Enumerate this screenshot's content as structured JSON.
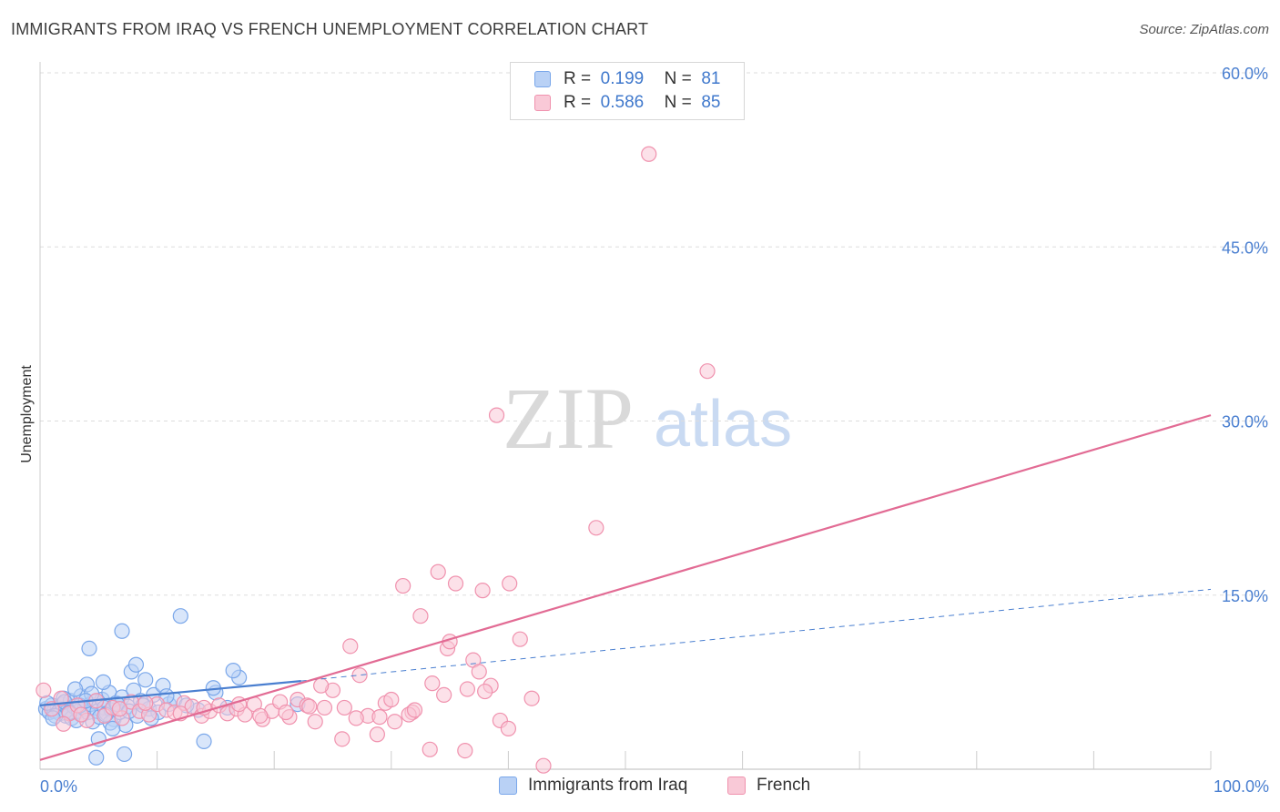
{
  "header": {
    "title": "IMMIGRANTS FROM IRAQ VS FRENCH UNEMPLOYMENT CORRELATION CHART",
    "source": "Source: ZipAtlas.com"
  },
  "watermark": {
    "zip": "ZIP",
    "atlas": "atlas"
  },
  "legend": {
    "rows": [
      {
        "r_label": "R =",
        "r_value": "0.199",
        "n_label": "N =",
        "n_value": "81",
        "color": "#7aa7ea",
        "fill": "#b9d1f5"
      },
      {
        "r_label": "R =",
        "r_value": "0.586",
        "n_label": "N =",
        "n_value": "85",
        "color": "#f092ae",
        "fill": "#f9c9d7"
      }
    ]
  },
  "bottom_legend": [
    {
      "label": "Immigrants from Iraq",
      "color": "#7aa7ea",
      "fill": "#b9d1f5"
    },
    {
      "label": "French",
      "color": "#f092ae",
      "fill": "#f9c9d7"
    }
  ],
  "chart_data": {
    "type": "scatter",
    "title": "IMMIGRANTS FROM IRAQ VS FRENCH UNEMPLOYMENT CORRELATION CHART",
    "xlabel": "",
    "ylabel": "Unemployment",
    "xlim": [
      0,
      100
    ],
    "ylim": [
      0,
      60
    ],
    "x_tick_labels": [
      {
        "value": 0,
        "label": "0.0%"
      },
      {
        "value": 100,
        "label": "100.0%"
      }
    ],
    "y_tick_labels": [
      {
        "value": 15,
        "label": "15.0%"
      },
      {
        "value": 30,
        "label": "30.0%"
      },
      {
        "value": 45,
        "label": "45.0%"
      },
      {
        "value": 60,
        "label": "60.0%"
      }
    ],
    "grid": true,
    "series": [
      {
        "name": "Immigrants from Iraq",
        "color": "#4a7fd0",
        "marker_fill": "#b9d1f5",
        "marker_stroke": "#7aa7ea",
        "trend_solid": {
          "x": [
            0,
            22.3
          ],
          "y": [
            5.5,
            7.6
          ]
        },
        "trend_dashed": {
          "x": [
            22.3,
            100
          ],
          "y": [
            7.6,
            15.5
          ]
        },
        "points": [
          [
            0.5,
            5.2
          ],
          [
            0.8,
            4.9
          ],
          [
            1.0,
            5.5
          ],
          [
            1.2,
            5.0
          ],
          [
            1.5,
            5.3
          ],
          [
            1.7,
            4.8
          ],
          [
            1.9,
            5.6
          ],
          [
            2.0,
            6.1
          ],
          [
            2.2,
            4.6
          ],
          [
            2.4,
            5.1
          ],
          [
            2.6,
            5.9
          ],
          [
            2.7,
            4.4
          ],
          [
            2.9,
            5.4
          ],
          [
            3.1,
            4.2
          ],
          [
            3.3,
            5.0
          ],
          [
            3.5,
            6.3
          ],
          [
            3.6,
            4.7
          ],
          [
            3.8,
            5.2
          ],
          [
            4.0,
            7.3
          ],
          [
            4.1,
            4.9
          ],
          [
            4.3,
            5.6
          ],
          [
            4.5,
            4.1
          ],
          [
            4.7,
            5.8
          ],
          [
            4.9,
            5.0
          ],
          [
            5.1,
            4.5
          ],
          [
            5.3,
            6.0
          ],
          [
            5.5,
            5.3
          ],
          [
            5.7,
            4.8
          ],
          [
            5.9,
            6.6
          ],
          [
            6.1,
            5.1
          ],
          [
            6.3,
            4.3
          ],
          [
            6.5,
            5.7
          ],
          [
            6.8,
            4.9
          ],
          [
            7.0,
            6.2
          ],
          [
            7.3,
            3.8
          ],
          [
            7.5,
            5.4
          ],
          [
            7.8,
            8.4
          ],
          [
            8.0,
            6.8
          ],
          [
            8.3,
            4.6
          ],
          [
            8.6,
            5.9
          ],
          [
            9.0,
            7.7
          ],
          [
            9.3,
            5.2
          ],
          [
            9.7,
            6.4
          ],
          [
            10.1,
            4.9
          ],
          [
            10.5,
            7.2
          ],
          [
            11.0,
            5.6
          ],
          [
            11.5,
            6.0
          ],
          [
            12.0,
            13.2
          ],
          [
            13.5,
            5.1
          ],
          [
            14.0,
            2.4
          ],
          [
            15.0,
            6.6
          ],
          [
            16.0,
            5.3
          ],
          [
            17.0,
            7.9
          ],
          [
            4.2,
            10.4
          ],
          [
            7.0,
            11.9
          ],
          [
            8.2,
            9.0
          ],
          [
            3.0,
            6.9
          ],
          [
            5.0,
            2.6
          ],
          [
            6.0,
            4.0
          ],
          [
            1.3,
            4.6
          ],
          [
            2.1,
            5.8
          ],
          [
            3.4,
            5.5
          ],
          [
            4.4,
            6.5
          ],
          [
            5.6,
            4.7
          ],
          [
            6.6,
            5.6
          ],
          [
            7.6,
            5.0
          ],
          [
            8.8,
            5.5
          ],
          [
            9.5,
            4.4
          ],
          [
            10.8,
            6.3
          ],
          [
            12.5,
            5.5
          ],
          [
            0.6,
            5.7
          ],
          [
            1.1,
            4.4
          ],
          [
            2.5,
            4.9
          ],
          [
            3.9,
            5.9
          ],
          [
            6.2,
            3.5
          ],
          [
            7.2,
            1.3
          ],
          [
            4.8,
            1.0
          ],
          [
            14.8,
            7.0
          ],
          [
            16.5,
            8.5
          ],
          [
            22.0,
            5.6
          ],
          [
            5.4,
            7.5
          ]
        ]
      },
      {
        "name": "French",
        "color": "#e26b94",
        "marker_fill": "#f9c9d7",
        "marker_stroke": "#f092ae",
        "trend_solid": {
          "x": [
            0,
            100
          ],
          "y": [
            0.8,
            30.5
          ]
        },
        "points": [
          [
            0.3,
            6.8
          ],
          [
            1.0,
            5.2
          ],
          [
            1.8,
            6.1
          ],
          [
            2.5,
            4.8
          ],
          [
            3.2,
            5.5
          ],
          [
            4.0,
            4.2
          ],
          [
            4.8,
            5.9
          ],
          [
            5.5,
            4.6
          ],
          [
            6.2,
            5.3
          ],
          [
            7.0,
            4.4
          ],
          [
            7.8,
            5.8
          ],
          [
            8.5,
            5.0
          ],
          [
            9.3,
            4.7
          ],
          [
            10.0,
            5.6
          ],
          [
            10.8,
            5.1
          ],
          [
            11.5,
            4.9
          ],
          [
            12.3,
            5.7
          ],
          [
            13.0,
            5.4
          ],
          [
            13.8,
            4.6
          ],
          [
            14.5,
            5.0
          ],
          [
            15.3,
            5.5
          ],
          [
            16.0,
            4.8
          ],
          [
            16.8,
            5.2
          ],
          [
            17.5,
            4.7
          ],
          [
            18.3,
            5.6
          ],
          [
            19.0,
            4.3
          ],
          [
            19.8,
            5.0
          ],
          [
            20.5,
            5.8
          ],
          [
            21.3,
            4.5
          ],
          [
            22.0,
            6.0
          ],
          [
            22.8,
            5.5
          ],
          [
            23.5,
            4.1
          ],
          [
            24.3,
            5.3
          ],
          [
            25.0,
            6.8
          ],
          [
            25.8,
            2.6
          ],
          [
            26.5,
            10.6
          ],
          [
            27.3,
            8.1
          ],
          [
            28.0,
            4.6
          ],
          [
            28.8,
            3.0
          ],
          [
            29.5,
            5.7
          ],
          [
            30.3,
            4.1
          ],
          [
            31.0,
            15.8
          ],
          [
            31.8,
            4.9
          ],
          [
            32.5,
            13.2
          ],
          [
            33.3,
            1.7
          ],
          [
            34.0,
            17.0
          ],
          [
            34.8,
            10.4
          ],
          [
            35.5,
            16.0
          ],
          [
            36.3,
            1.6
          ],
          [
            37.0,
            9.4
          ],
          [
            37.8,
            15.4
          ],
          [
            38.5,
            7.2
          ],
          [
            39.3,
            4.2
          ],
          [
            40.0,
            3.5
          ],
          [
            41.0,
            11.2
          ],
          [
            42.0,
            6.1
          ],
          [
            43.0,
            0.3
          ],
          [
            47.5,
            20.8
          ],
          [
            52.0,
            53.0
          ],
          [
            57.0,
            34.3
          ],
          [
            40.1,
            16.0
          ],
          [
            39.0,
            30.5
          ],
          [
            24.0,
            7.2
          ],
          [
            26.0,
            5.3
          ],
          [
            29.0,
            4.5
          ],
          [
            31.5,
            4.7
          ],
          [
            33.5,
            7.4
          ],
          [
            35.0,
            11.0
          ],
          [
            36.5,
            6.9
          ],
          [
            38.0,
            6.7
          ],
          [
            2.0,
            3.9
          ],
          [
            3.5,
            4.7
          ],
          [
            6.8,
            5.2
          ],
          [
            9.0,
            5.7
          ],
          [
            12.0,
            4.8
          ],
          [
            14.0,
            5.3
          ],
          [
            17.0,
            5.6
          ],
          [
            18.8,
            4.6
          ],
          [
            21.0,
            4.9
          ],
          [
            23.0,
            5.4
          ],
          [
            27.0,
            4.4
          ],
          [
            30.0,
            6.0
          ],
          [
            32.0,
            5.1
          ],
          [
            34.5,
            6.4
          ],
          [
            37.5,
            8.4
          ]
        ]
      }
    ]
  }
}
